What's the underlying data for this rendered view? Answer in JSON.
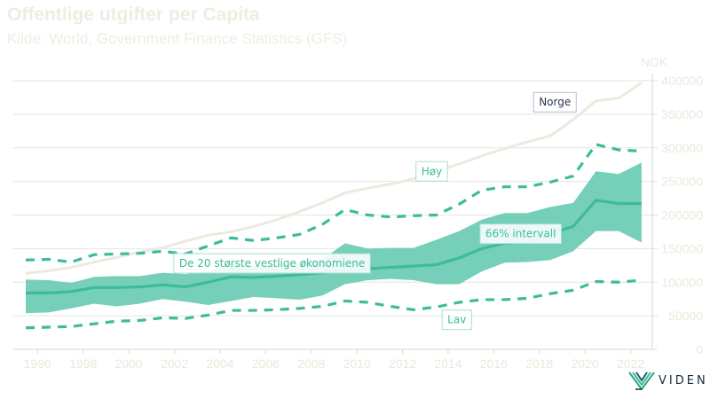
{
  "header": {
    "title": "Offentlige utgifter per Capita",
    "subtitle": "Kilde: World, Government Finance Statistics (GFS)"
  },
  "colors": {
    "norway": "#ece9de",
    "accent": "#3cbc98",
    "band": "#76cfb8",
    "title": "#efede2",
    "norge_label": "#2d3553",
    "grid": "#e4e4e4"
  },
  "logo": {
    "text": "VIDEN",
    "icon": "viden-logo-icon"
  },
  "chart_data": {
    "type": "line",
    "title": "Offentlige utgifter per Capita",
    "subtitle": "Kilde: World, Government Finance Statistics (GFS)",
    "ylabel": "NOK",
    "xlabel": "",
    "ylim": [
      0,
      400000
    ],
    "y_ticks": [
      0,
      50000,
      100000,
      150000,
      200000,
      250000,
      300000,
      350000,
      400000
    ],
    "y_tick_labels": [
      "0",
      "50000",
      "100000",
      "150000",
      "200000",
      "250000",
      "300000",
      "350000",
      "400000"
    ],
    "y_axis_side": "right",
    "x_ticks": [
      1996,
      1998,
      2000,
      2002,
      2004,
      2006,
      2008,
      2010,
      2012,
      2014,
      2016,
      2018,
      2020,
      2022
    ],
    "x_tick_labels": [
      "1996",
      "1998",
      "2000",
      "2002",
      "2004",
      "2006",
      "2008",
      "2010",
      "2012",
      "2014",
      "2016",
      "2018",
      "2020",
      "2022"
    ],
    "grid": true,
    "x": [
      1995,
      1996,
      1997,
      1998,
      1999,
      2000,
      2001,
      2002,
      2003,
      2004,
      2005,
      2006,
      2007,
      2008,
      2009,
      2010,
      2011,
      2012,
      2013,
      2014,
      2015,
      2016,
      2017,
      2018,
      2019,
      2020,
      2021,
      2022
    ],
    "series": [
      {
        "name": "Norge",
        "style": "solid",
        "values": [
          113000,
          117000,
          122000,
          130000,
          137000,
          145000,
          151000,
          161000,
          170000,
          175000,
          183000,
          193000,
          205000,
          218000,
          233000,
          240000,
          246000,
          254000,
          265000,
          276000,
          288000,
          299000,
          309000,
          318000,
          342000,
          370000,
          374000,
          397000
        ]
      },
      {
        "name": "Høy",
        "style": "dashed",
        "values": [
          133000,
          134000,
          130000,
          141000,
          142000,
          143000,
          146000,
          142000,
          154000,
          166000,
          162000,
          166000,
          171000,
          186000,
          208000,
          200000,
          197000,
          199000,
          200000,
          216000,
          237000,
          242000,
          242000,
          249000,
          258000,
          305000,
          297000,
          295000
        ]
      },
      {
        "name": "De 20 største vestlige økonomiene",
        "style": "solid",
        "values": [
          84000,
          84000,
          86000,
          92000,
          92000,
          93000,
          96000,
          93000,
          100000,
          108000,
          107000,
          109000,
          111000,
          114000,
          117000,
          120000,
          122000,
          124000,
          126000,
          136000,
          150000,
          158000,
          159000,
          172000,
          183000,
          222000,
          217000,
          217000
        ]
      },
      {
        "name": "Lav",
        "style": "dashed",
        "values": [
          32000,
          33000,
          34000,
          38000,
          42000,
          43000,
          47000,
          46000,
          51000,
          58000,
          58000,
          59000,
          61000,
          64000,
          72000,
          70000,
          64000,
          59000,
          63000,
          70000,
          74000,
          74000,
          76000,
          83000,
          88000,
          101000,
          100000,
          103000
        ]
      }
    ],
    "band": {
      "name": "66% intervall",
      "upper": [
        104000,
        103000,
        99000,
        108000,
        109000,
        109000,
        114000,
        112000,
        116000,
        128000,
        124000,
        126000,
        129000,
        134000,
        158000,
        150000,
        151000,
        151000,
        163000,
        176000,
        193000,
        203000,
        203000,
        212000,
        218000,
        265000,
        261000,
        278000
      ],
      "lower": [
        54000,
        55000,
        61000,
        68000,
        64000,
        68000,
        75000,
        71000,
        66000,
        72000,
        78000,
        76000,
        74000,
        80000,
        97000,
        103000,
        105000,
        103000,
        97000,
        97000,
        116000,
        129000,
        130000,
        133000,
        146000,
        176000,
        176000,
        159000
      ]
    },
    "annotations": [
      {
        "text": "Norge",
        "series": "Norge",
        "x": 2018.2,
        "y": 368000,
        "color_key": "norge_label"
      },
      {
        "text": "Høy",
        "series": "Høy",
        "x": 2012.8,
        "y": 265000,
        "color_key": "accent"
      },
      {
        "text": "66% intervall",
        "series": "band",
        "x": 2016.7,
        "y": 172000,
        "color_key": "accent"
      },
      {
        "text": "De 20 største vestlige økonomiene",
        "series": "De 20 største vestlige økonomiene",
        "x": 2005.8,
        "y": 128000,
        "color_key": "accent"
      },
      {
        "text": "Lav",
        "series": "Lav",
        "x": 2013.9,
        "y": 44000,
        "color_key": "accent"
      }
    ]
  }
}
